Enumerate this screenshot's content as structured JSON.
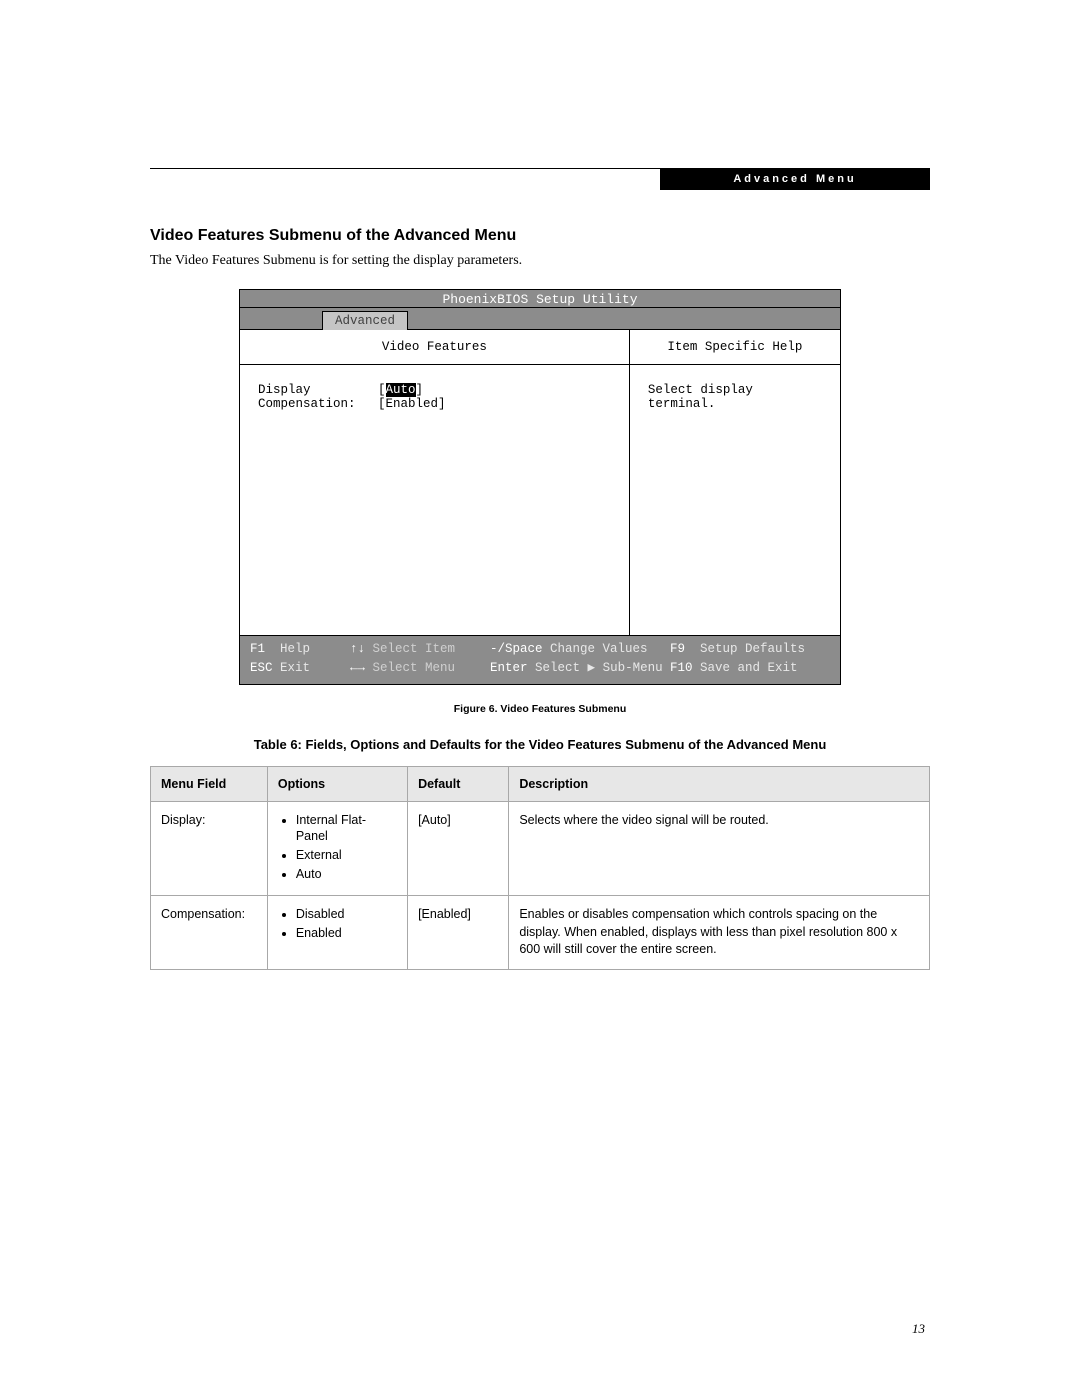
{
  "header": {
    "breadcrumb": "Advanced Menu"
  },
  "section": {
    "heading": "Video Features Submenu of the Advanced Menu",
    "intro": "The Video Features Submenu is for setting the display parameters."
  },
  "bios": {
    "title": "PhoenixBIOS Setup Utility",
    "tab": "Advanced",
    "left_heading": "Video Features",
    "right_heading": "Item Specific Help",
    "help_text": "Select display terminal.",
    "rows": [
      {
        "label": "Display",
        "value": "[Auto]",
        "selected": true
      },
      {
        "label": "Compensation:",
        "value": "[Enabled]",
        "selected": false
      }
    ],
    "footer": {
      "r1": {
        "c1_key": "F1",
        "c1_label": "Help",
        "c2_key": "↑↓",
        "c2_label": "Select Item",
        "c3_key": "-/Space",
        "c3_label": "Change Values",
        "c4_key": "F9",
        "c4_label": "Setup Defaults"
      },
      "r2": {
        "c1_key": "ESC",
        "c1_label": "Exit",
        "c2_key": "←→",
        "c2_label": "Select Menu",
        "c3_key": "Enter",
        "c3_label": "Select ▶ Sub-Menu",
        "c4_key": "F10",
        "c4_label": "Save and Exit"
      }
    }
  },
  "figure_caption": "Figure 6.  Video Features Submenu",
  "table_caption": "Table 6: Fields, Options and Defaults for the Video Features Submenu of the Advanced Menu",
  "table": {
    "col_widths": [
      "15%",
      "18%",
      "13%",
      "54%"
    ],
    "headers": [
      "Menu Field",
      "Options",
      "Default",
      "Description"
    ],
    "rows": [
      {
        "field": "Display:",
        "options": [
          "Internal Flat-Panel",
          "External",
          "Auto"
        ],
        "default": "[Auto]",
        "desc": "Selects where the video signal will be routed."
      },
      {
        "field": "Compensation:",
        "options": [
          "Disabled",
          "Enabled"
        ],
        "default": "[Enabled]",
        "desc": "Enables or disables compensation which controls spacing on the display. When enabled, displays with less than pixel resolution 800 x 600 will still cover the entire screen."
      }
    ]
  },
  "page_number": "13"
}
